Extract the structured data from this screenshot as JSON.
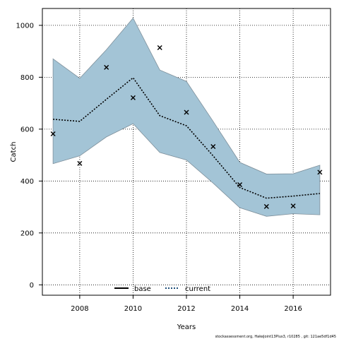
{
  "chart_data": {
    "type": "line",
    "xlabel": "Years",
    "ylabel": "Catch",
    "xlim": [
      2006.6,
      2017.4
    ],
    "ylim": [
      -40,
      1065
    ],
    "x_ticks": [
      2008,
      2010,
      2012,
      2014,
      2016
    ],
    "y_ticks": [
      0,
      200,
      400,
      600,
      800,
      1000
    ],
    "grid": true,
    "legend_position": "bottom-center",
    "legend": [
      {
        "label": "base",
        "style": "solid",
        "color": "#000000"
      },
      {
        "label": "current",
        "style": "dotted",
        "color": "#1f4e79"
      }
    ],
    "years": [
      2007,
      2008,
      2009,
      2010,
      2011,
      2012,
      2013,
      2014,
      2015,
      2016,
      2017
    ],
    "series": [
      {
        "name": "current",
        "type": "line",
        "values": [
          638,
          630,
          715,
          798,
          652,
          613,
          497,
          375,
          334,
          342,
          352
        ]
      },
      {
        "type": "band",
        "lower": [
          467,
          497,
          570,
          621,
          510,
          481,
          392,
          297,
          264,
          274,
          270
        ],
        "upper": [
          871,
          796,
          906,
          1028,
          828,
          784,
          630,
          472,
          427,
          428,
          461
        ]
      },
      {
        "type": "scatter",
        "values": [
          582,
          468,
          838,
          721,
          914,
          665,
          533,
          386,
          302,
          304,
          434
        ]
      }
    ],
    "colors": {
      "band": "#a3c4d6",
      "band_edge": "#7e8f9a",
      "line": "#000000",
      "point": "#000000"
    },
    "footnote": "stockassessment.org, HakeJoint13Plus3, r10285 , git: 121ae5df1d45"
  }
}
